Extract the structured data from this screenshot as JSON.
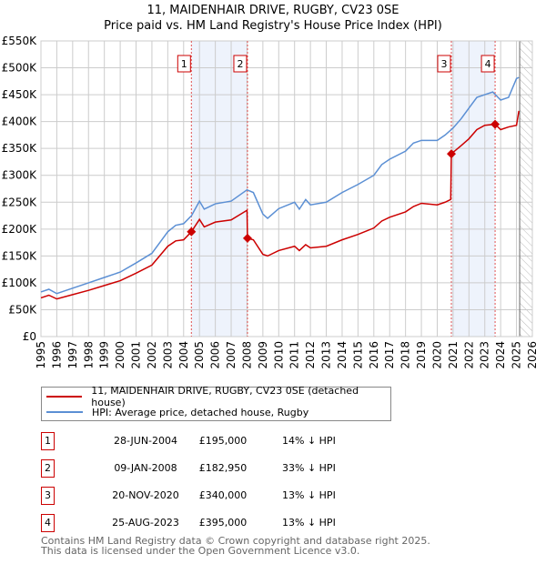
{
  "title": "11, MAIDENHAIR DRIVE, RUGBY, CV23 0SE",
  "subtitle": "Price paid vs. HM Land Registry's House Price Index (HPI)",
  "chart_data": {
    "type": "line",
    "xlim": [
      1995,
      2026
    ],
    "ylim": [
      0,
      550000
    ],
    "y_ticks": [
      {
        "v": 0,
        "label": "£0"
      },
      {
        "v": 50000,
        "label": "£50K"
      },
      {
        "v": 100000,
        "label": "£100K"
      },
      {
        "v": 150000,
        "label": "£150K"
      },
      {
        "v": 200000,
        "label": "£200K"
      },
      {
        "v": 250000,
        "label": "£250K"
      },
      {
        "v": 300000,
        "label": "£300K"
      },
      {
        "v": 350000,
        "label": "£350K"
      },
      {
        "v": 400000,
        "label": "£400K"
      },
      {
        "v": 450000,
        "label": "£450K"
      },
      {
        "v": 500000,
        "label": "£500K"
      },
      {
        "v": 550000,
        "label": "£550K"
      }
    ],
    "x_ticks": [
      "1995",
      "1996",
      "1997",
      "1998",
      "1999",
      "2000",
      "2001",
      "2002",
      "2003",
      "2004",
      "2005",
      "2006",
      "2007",
      "2008",
      "2009",
      "2010",
      "2011",
      "2012",
      "2013",
      "2014",
      "2015",
      "2016",
      "2017",
      "2018",
      "2019",
      "2020",
      "2021",
      "2022",
      "2023",
      "2024",
      "2025",
      "2026"
    ],
    "forecast_from": 2025.2,
    "shaded_ranges": [
      [
        2004.49,
        2008.03
      ],
      [
        2020.89,
        2023.65
      ]
    ],
    "series": [
      {
        "name": "11, MAIDENHAIR DRIVE, RUGBY, CV23 0SE (detached house)",
        "color": "#cc0000",
        "x": [
          1995,
          1995.5,
          1996,
          1997,
          1998,
          1999,
          2000,
          2001,
          2002,
          2003,
          2003.5,
          2004,
          2004.49,
          2005,
          2005.3,
          2006,
          2007,
          2008.0,
          2008.03,
          2008.4,
          2009,
          2009.3,
          2010,
          2011,
          2011.3,
          2011.7,
          2012,
          2013,
          2014,
          2015,
          2016,
          2016.5,
          2017,
          2018,
          2018.5,
          2019,
          2020,
          2020.5,
          2020.85,
          2020.89,
          2021.5,
          2022,
          2022.5,
          2023,
          2023.65,
          2024,
          2024.5,
          2025,
          2025.15
        ],
        "y": [
          72000,
          77000,
          70000,
          78000,
          86000,
          95000,
          104000,
          118000,
          133000,
          168000,
          178000,
          180000,
          195000,
          218000,
          204000,
          213000,
          217000,
          235000,
          182950,
          180000,
          153000,
          150000,
          160000,
          168000,
          160000,
          171000,
          165000,
          168000,
          180000,
          190000,
          202000,
          215000,
          222000,
          232000,
          242000,
          248000,
          245000,
          250000,
          255000,
          340000,
          355000,
          368000,
          385000,
          393000,
          395000,
          385000,
          390000,
          393000,
          420000
        ]
      },
      {
        "name": "HPI: Average price, detached house, Rugby",
        "color": "#5b8fd4",
        "x": [
          1995,
          1995.5,
          1996,
          1997,
          1998,
          1999,
          2000,
          2001,
          2002,
          2003,
          2003.5,
          2004,
          2004.5,
          2005,
          2005.3,
          2006,
          2007,
          2008,
          2008.4,
          2009,
          2009.3,
          2010,
          2011,
          2011.3,
          2011.7,
          2012,
          2013,
          2014,
          2015,
          2016,
          2016.5,
          2017,
          2018,
          2018.5,
          2019,
          2020,
          2020.5,
          2021,
          2021.5,
          2022,
          2022.5,
          2023,
          2023.5,
          2024,
          2024.5,
          2025,
          2025.15
        ],
        "y": [
          83000,
          88000,
          80000,
          90000,
          100000,
          110000,
          120000,
          137000,
          155000,
          195000,
          207000,
          210000,
          225000,
          252000,
          237000,
          247000,
          252000,
          273000,
          268000,
          228000,
          220000,
          238000,
          250000,
          237000,
          255000,
          245000,
          250000,
          268000,
          283000,
          300000,
          320000,
          330000,
          345000,
          360000,
          365000,
          365000,
          375000,
          388000,
          405000,
          425000,
          445000,
          450000,
          455000,
          440000,
          445000,
          480000,
          482000
        ]
      }
    ],
    "sales": [
      {
        "n": "1",
        "date": "28-JUN-2004",
        "x": 2004.49,
        "price": "£195,000",
        "value": 195000,
        "hpi": "14% ↓ HPI"
      },
      {
        "n": "2",
        "date": "09-JAN-2008",
        "x": 2008.03,
        "price": "£182,950",
        "value": 182950,
        "hpi": "33% ↓ HPI"
      },
      {
        "n": "3",
        "date": "20-NOV-2020",
        "x": 2020.89,
        "price": "£340,000",
        "value": 340000,
        "hpi": "13% ↓ HPI"
      },
      {
        "n": "4",
        "date": "25-AUG-2023",
        "x": 2023.65,
        "price": "£395,000",
        "value": 395000,
        "hpi": "13% ↓ HPI"
      }
    ]
  },
  "legend": {
    "property": "11, MAIDENHAIR DRIVE, RUGBY, CV23 0SE (detached house)",
    "hpi": "HPI: Average price, detached house, Rugby"
  },
  "footer": {
    "line1": "Contains HM Land Registry data © Crown copyright and database right 2025.",
    "line2": "This data is licensed under the Open Government Licence v3.0."
  }
}
